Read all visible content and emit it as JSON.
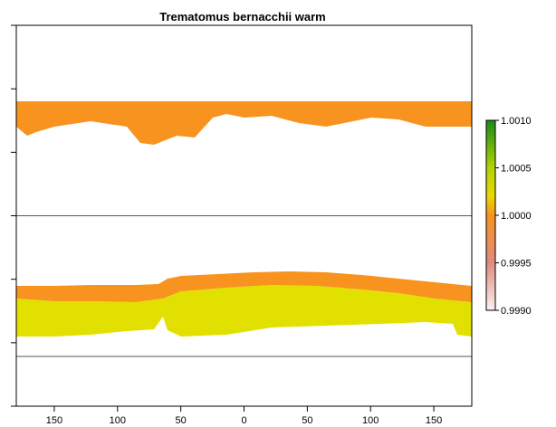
{
  "chart_data": {
    "type": "heatmap",
    "title": "Trematomus bernacchii warm",
    "x_ticks": [
      -150,
      -100,
      -50,
      0,
      50,
      100,
      150
    ],
    "x_tick_labels": [
      "150",
      "100",
      "50",
      "0",
      "50",
      "100",
      "150"
    ],
    "xlim": [
      -180,
      180
    ],
    "ylim": [
      -90,
      90
    ],
    "y_ticks": [
      -90,
      -60,
      -30,
      0,
      30,
      60,
      90
    ],
    "horizontal_lines_lat": [
      0,
      -66.5
    ],
    "legend": {
      "position": "right",
      "min": 0.999,
      "max": 1.001,
      "tick_values": [
        0.999,
        0.9995,
        1.0,
        1.0005,
        1.001
      ],
      "tick_labels": [
        "0.9990",
        "0.9995",
        "1.0000",
        "1.0005",
        "1.0010"
      ]
    },
    "colors": {
      "orange_band": "#f7931e",
      "yellow_band": "#e2e000",
      "frame": "#000000",
      "line": "#555555"
    },
    "bands": [
      {
        "lat_top": 53,
        "lat_bottom": 42,
        "color": "orange",
        "value": 0.9996
      },
      {
        "lat_top": -28,
        "lat_bottom": -40,
        "color": "orange",
        "value": 0.9996
      },
      {
        "lat_top": -38,
        "lat_bottom": -57,
        "color": "yellow",
        "value": 1.0
      }
    ]
  }
}
